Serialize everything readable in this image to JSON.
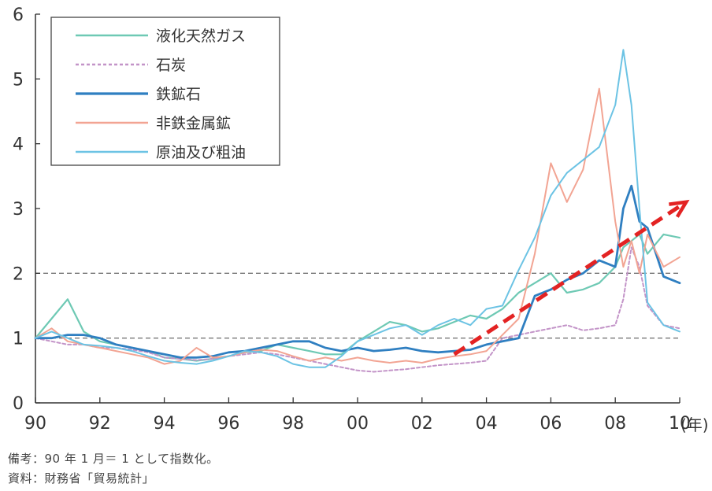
{
  "chart_data": {
    "type": "line",
    "title": "",
    "xlabel": "(年)",
    "ylabel": "",
    "xlim": [
      1990,
      2010
    ],
    "ylim": [
      0,
      6
    ],
    "x_ticks": [
      "90",
      "92",
      "94",
      "96",
      "98",
      "00",
      "02",
      "04",
      "06",
      "08",
      "10"
    ],
    "y_ticks": [
      "0",
      "1",
      "2",
      "3",
      "4",
      "5",
      "6"
    ],
    "reference_lines": [
      1,
      2
    ],
    "legend_position": "top-left",
    "x": [
      1990.0,
      1990.5,
      1991.0,
      1991.5,
      1992.0,
      1992.5,
      1993.0,
      1993.5,
      1994.0,
      1994.5,
      1995.0,
      1995.5,
      1996.0,
      1996.5,
      1997.0,
      1997.5,
      1998.0,
      1998.5,
      1999.0,
      1999.5,
      2000.0,
      2000.5,
      2001.0,
      2001.5,
      2002.0,
      2002.5,
      2003.0,
      2003.5,
      2004.0,
      2004.5,
      2005.0,
      2005.5,
      2006.0,
      2006.5,
      2007.0,
      2007.5,
      2008.0,
      2008.25,
      2008.5,
      2008.75,
      2009.0,
      2009.5,
      2010.0
    ],
    "series": [
      {
        "name": "液化天然ガス",
        "color": "#6ec9b4",
        "dash": "solid",
        "width": 2.2,
        "values": [
          1.0,
          1.3,
          1.6,
          1.1,
          0.95,
          0.9,
          0.85,
          0.8,
          0.7,
          0.68,
          0.65,
          0.68,
          0.72,
          0.78,
          0.8,
          0.9,
          0.85,
          0.8,
          0.75,
          0.75,
          0.95,
          1.1,
          1.25,
          1.2,
          1.1,
          1.15,
          1.25,
          1.35,
          1.3,
          1.45,
          1.7,
          1.85,
          2.0,
          1.7,
          1.75,
          1.85,
          2.1,
          2.4,
          2.5,
          2.6,
          2.3,
          2.6,
          2.55
        ]
      },
      {
        "name": "石炭",
        "color": "#c394c8",
        "dash": "dash",
        "width": 2,
        "values": [
          1.0,
          0.95,
          0.9,
          0.9,
          0.85,
          0.85,
          0.82,
          0.78,
          0.7,
          0.68,
          0.66,
          0.68,
          0.72,
          0.75,
          0.78,
          0.75,
          0.7,
          0.65,
          0.6,
          0.55,
          0.5,
          0.48,
          0.5,
          0.52,
          0.55,
          0.58,
          0.6,
          0.62,
          0.65,
          1.0,
          1.05,
          1.1,
          1.15,
          1.2,
          1.12,
          1.15,
          1.2,
          1.6,
          2.4,
          2.1,
          1.5,
          1.2,
          1.15
        ]
      },
      {
        "name": "鉄鉱石",
        "color": "#2f7fc1",
        "dash": "solid",
        "width": 2.8,
        "values": [
          1.0,
          1.0,
          1.05,
          1.05,
          1.0,
          0.9,
          0.85,
          0.8,
          0.75,
          0.7,
          0.7,
          0.72,
          0.78,
          0.8,
          0.85,
          0.9,
          0.95,
          0.95,
          0.85,
          0.8,
          0.85,
          0.8,
          0.82,
          0.85,
          0.8,
          0.78,
          0.8,
          0.82,
          0.9,
          0.95,
          1.0,
          1.65,
          1.75,
          1.9,
          2.0,
          2.2,
          2.1,
          3.0,
          3.35,
          2.8,
          2.7,
          1.95,
          1.85
        ]
      },
      {
        "name": "非鉄金属鉱",
        "color": "#f2a493",
        "dash": "solid",
        "width": 2,
        "values": [
          1.0,
          1.15,
          0.95,
          0.9,
          0.85,
          0.8,
          0.75,
          0.7,
          0.6,
          0.65,
          0.85,
          0.7,
          0.72,
          0.78,
          0.82,
          0.8,
          0.72,
          0.65,
          0.7,
          0.65,
          0.7,
          0.65,
          0.62,
          0.65,
          0.62,
          0.68,
          0.72,
          0.75,
          0.8,
          1.05,
          1.3,
          2.3,
          3.7,
          3.1,
          3.6,
          4.85,
          2.8,
          2.1,
          2.5,
          2.0,
          2.6,
          2.1,
          2.25
        ]
      },
      {
        "name": "原油及び粗油",
        "color": "#6cc3e4",
        "dash": "solid",
        "width": 2,
        "values": [
          1.0,
          1.1,
          1.0,
          0.9,
          0.88,
          0.85,
          0.8,
          0.72,
          0.65,
          0.62,
          0.6,
          0.65,
          0.72,
          0.8,
          0.78,
          0.72,
          0.6,
          0.55,
          0.55,
          0.72,
          0.95,
          1.05,
          1.15,
          1.2,
          1.05,
          1.2,
          1.3,
          1.2,
          1.45,
          1.5,
          2.05,
          2.55,
          3.2,
          3.55,
          3.75,
          3.95,
          4.6,
          5.45,
          4.6,
          3.0,
          1.55,
          1.2,
          1.1
        ]
      }
    ],
    "annotations": [
      {
        "type": "trend-arrow",
        "color": "#e32323",
        "x": [
          2003.0,
          2010.2
        ],
        "y": [
          0.75,
          3.1
        ]
      }
    ]
  },
  "notes": {
    "line1": "備考：90 年 1 月＝ 1 として指数化。",
    "line2": "資料：財務省「貿易統計」"
  }
}
